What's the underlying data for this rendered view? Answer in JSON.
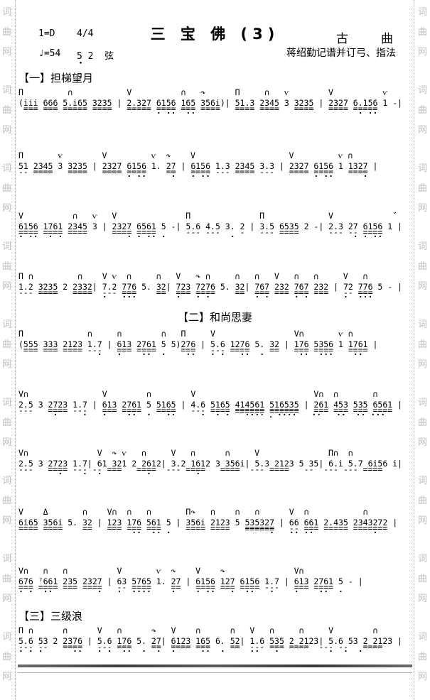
{
  "watermark": {
    "chars": [
      "词",
      "曲",
      "网"
    ],
    "color": "#bdbdbd"
  },
  "header": {
    "key": "1=D",
    "meter": "4/4",
    "title": "三 宝 佛 (3)",
    "genre": "古　　曲",
    "tempo": "♩=54",
    "tuning": "5 2  弦",
    "tuning_dot": "·",
    "credit": "蒋绍勤记谱并订弓、指法"
  },
  "sections": [
    {
      "label": "【一】担梯望月"
    },
    {
      "label": "【二】和尚思妻"
    },
    {
      "label": "【三】三级浪"
    }
  ],
  "lines": [
    {
      "marks": "П         ∩           V          ∩   ↷      П     ∩   ѵ        V          ѵ",
      "notes": "(iii 666 5.i65 3235 | 2.327 6156 165 356i)| 51.3 2345 3 3235 | 2327 6.156 1 -|",
      "beams": " === === ===== ====   ===== ==== === ====   ==== ====   ====   ==== =====",
      "dots": "                            · ··  ··                                 · ··"
    },
    {
      "marks": "П       ѵ        V         ѵ  ↷    V                   V         ѵ ∩",
      "notes": "51 2345 3 3235 | 2327 6156 1. 27 | 6156 1.3 2345 3.3 | 2327 6156 1 1327 |",
      "beams": "-- ====   ====   ==== ====    ==   ==== --- ==== ---   ==== ====   ====",
      "dots": "                      · ··     ·   · ··                     · ··      ·"
    },
    {
      "marks": "V          ∩   ѵ   V              П              П             V            ˇ",
      "notes": "6156 1761 2345 3 | 2327 6561 5 -| 5.6 4.5 3. 2 | 3.5 6535 2 -| 2.3 27 6156 1 |",
      "beams": "==== ==== ====     ==== ====      --- ---    -   --- ====      --- -- ====",
      "dots": "· ··  · ·             · · ·· ·             ·                        · · ··"
    },
    {
      "marks": "П ∩         ∩    V ѵ  ∩     ∩   V   ↷ ∩     ∩   ∩   V   ∩   ∩     V   ∩",
      "notes": "1.2 3235 2 2332| 7.2 776 5. 32| 723 7276 5. 32| 767 232 767 232 | 72 776 5 - |",
      "beams": "--- ====   ====  --- ===    ==  === ====    ==  === === === ===   -- ===",
      "dots": "                 ·   ···        ·   · ·         · ·     · ·       ·  ···"
    },
    {
      "marks": "П             ∩     ∩        ∩   П     V                V∩       ѵ ∩",
      "notes": "(555 333 2123 1.7 | 613 2761 5 5)276 | 5.6 1276 5. 32 | 176 5356 1 1761 |",
      "beams": " === === ==== ---   === ====     ===   --- ====    ==   === ====   ====",
      "dots": "                ·   ·    ··  ·    ··   · ·   ··  ·       ··  ···    ··"
    },
    {
      "marks": "V∩               V        ∩        V                        V∩  ∩       ∩",
      "notes": "2.5 3 2723 1.7 | 613 2761 5 5165 | 4.6 5165 414561 516535 | 261 453 535 6561 |",
      "beams": "---   ==== ---   === ====   ====   --- ==== ≡≡≡≡≡≡ ≡≡≡≡≡≡   === === === ====",
      "dots": "       ·     ·   ·    ··  ·   ··     ·  · ·   ···· ․ ····   ··   ··  ·· ···"
    },
    {
      "marks": "V∩              V  ↷ ѵ   ∩     V   ∩      ∩     V              П∩  ∩",
      "notes": "2.5 3 2723 1.7| 61 321 2 2612| 3.2 1612 3 356i| 5.3 2123 5 35| 6.i 5.7 6i56 i|",
      "beams": "---   ==== --- -- ===   ====  --- ====   ====  --- ====   --  --- --- ====",
      "dots": "        ·    ·  ·         ·         ·"
    },
    {
      "marks": "V    Δ       ∩    V∩  ∩   ∩       П↷   ∩    ∩   ∩      V  ∩           ∩",
      "notes": "6i65 356i 5. 32 | 123 176 561 5 | 356i 2123 5 535327 | 66 661 2.435 2343272 |",
      "beams": "==== ====    ==   === === ===     ==== ====   ≡≡≡≡≡≡   -- === ===== =======",
      "dots": "                       ··  ·· ·                    ·   ·· ··            ·"
    },
    {
      "marks": "V∩   ∩   ∩          V       ѵ  ↷    V    ↷              V∩",
      "notes": "676 ⁷661 235 2327 | 63 5765 1. 27 | 6156 127 6156 1.7 | 613 2761 5 - |",
      "beams": "=== ==== === ====   -- ====    ==   ==== === ==== ---   === ====",
      "dots": "· ·  ··         ·   ·  ····    ·    · ··   ·  ··   ·    ·    ··  ·"
    },
    {
      "marks": "П ∩      ∩      V   ∩      ↷   V    ∩      ∩   V   ∩     ∩     V        ∩",
      "notes": "5.6 53 2 2376 | 5.6 176 5. 27| 6123 165 6. 52| 1.6 535 2 2123| 5.6 53 2 2123 |",
      "beams": "--- --   ====   --- ===    ==  ==== ===    ==  --- === ====  --- --   ====",
      "dots": "· · ·      ··   · ·  ··  ·  ·  ·     ··  ·     ··   ·          ·  ·  ·"
    }
  ]
}
